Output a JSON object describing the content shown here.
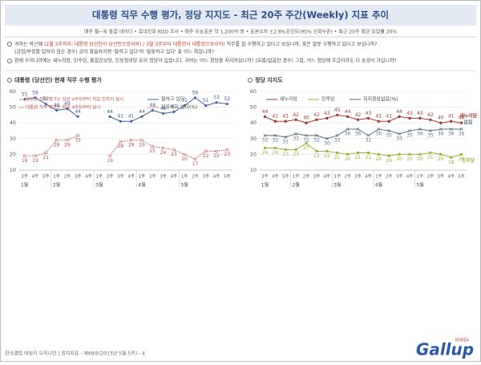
{
  "header": {
    "title": "대통령 직무 수행 평가, 정당 지지도 - 최근 20주 주간(Weekly) 지표 추이",
    "subtitle": "매주 월~목 통합 데이터 • 휴대전화 RDD 조사 • 매주 유효표본 약 1,200여 명 • 표본오차 ±2.8%포인트(95% 신뢰수준) • 최근 20주 평균 응답률 20%"
  },
  "questions": [
    {
      "a": "귀하는 박근혜 ",
      "b": "(2월 3주까지: 대통령 당선인이 당선인으로서의) / 3월 3주부터 대통령이 대통령으로서의)",
      "c": " 직무를 잘 수행하고 있다고 보십니까, 혹은 잘못 수행하고 있다고 보십니까?",
      "d": "(긍정/부정을 답하지 않은 경우) 굳이 말씀하자면 '잘하고 있다'와 '잘못하고 있다' 중 어느 쪽입니까?"
    },
    {
      "a": "현재 우리나라에는 새누리당, 민주당, 통합진보당, 진보정의당 등의 정당이 있습니다. 귀하는 어느 정당을 지지하십니까? (모름/없음인 경우) 그럼, 어느 정당에 조금이라도 더 호감이 가십니까?"
    }
  ],
  "chart_data": [
    {
      "type": "line",
      "title": "대통령 (당선인) 현재 직무 수행 평가",
      "categories": [
        "3주",
        "4주",
        "5주",
        "1주",
        "2주",
        "3주",
        "4주",
        "1주",
        "2주",
        "3주",
        "4주",
        "1주",
        "2주",
        "3주",
        "4주",
        "1주",
        "2주",
        "3주",
        "4주",
        "5주"
      ],
      "months": [
        "1월",
        null,
        null,
        "2월",
        null,
        null,
        null,
        "3월",
        null,
        null,
        null,
        "4월",
        null,
        null,
        null,
        "5월",
        null,
        null,
        null,
        null
      ],
      "series": [
        {
          "name": "잘하고 있다",
          "color": "#3d5f9c",
          "style": "solid",
          "marker": "diamond",
          "values": [
            55,
            56,
            52,
            48,
            49,
            44,
            null,
            null,
            44,
            41,
            41,
            44,
            48,
            46,
            47,
            51,
            56,
            51,
            53,
            52
          ]
        },
        {
          "name": "잘못하고 있다(%)",
          "color": "#c0504d",
          "style": "dotted",
          "marker": "circle",
          "values": [
            19,
            19,
            21,
            29,
            29,
            32,
            null,
            null,
            19,
            28,
            29,
            29,
            25,
            24,
            23,
            20,
            17,
            22,
            22,
            23
          ]
        }
      ],
      "annotations": [
        "당선인 직무 평가는 당선 4주차부터 취임 전까지 실시",
        "대통령 직무 평가는 취임 4주차부터 실시"
      ],
      "ylim": [
        10,
        60
      ],
      "yticks": [
        10,
        20,
        30,
        40,
        50,
        60
      ],
      "grid": true
    },
    {
      "type": "line",
      "title": "정당 지지도",
      "categories": [
        "3주",
        "4주",
        "5주",
        "1주",
        "2주",
        "3주",
        "4주",
        "1주",
        "2주",
        "3주",
        "4주",
        "1주",
        "2주",
        "3주",
        "4주",
        "1주",
        "2주",
        "3주",
        "4주",
        "5주"
      ],
      "months": [
        "1월",
        null,
        null,
        "2월",
        null,
        null,
        null,
        "3월",
        null,
        null,
        null,
        "4월",
        null,
        null,
        null,
        "5월",
        null,
        null,
        null,
        null
      ],
      "series": [
        {
          "name": "새누리당",
          "color": "#a33a34",
          "style": "solid",
          "marker": "circle",
          "values": [
            44,
            41,
            41,
            42,
            40,
            42,
            43,
            45,
            44,
            42,
            43,
            41,
            41,
            44,
            43,
            43,
            42,
            40,
            41,
            40
          ]
        },
        {
          "name": "민주당",
          "color": "#9bb535",
          "style": "solid",
          "marker": "circle",
          "values": [
            24,
            24,
            23,
            23,
            27,
            22,
            22,
            21,
            20,
            21,
            21,
            20,
            19,
            20,
            20,
            20,
            21,
            20,
            18,
            20
          ]
        },
        {
          "name": "지지정당없음(%)",
          "color": "#5b7383",
          "style": "solid",
          "marker": "x",
          "values": [
            32,
            32,
            31,
            33,
            32,
            32,
            30,
            32,
            36,
            36,
            32,
            36,
            35,
            33,
            35,
            36,
            35,
            36,
            36,
            36
          ]
        }
      ],
      "end_labels": [
        "새누리당",
        "민주당",
        "없음"
      ],
      "ylim": [
        10,
        60
      ],
      "yticks": [
        10,
        20,
        30,
        40,
        50,
        60
      ],
      "grid": true
    }
  ],
  "footer": {
    "text": "한국갤럽 데일리 오피니언 | 정치지표 - 제69호(2013년 5월 5주) - 4",
    "logo": "Gallup",
    "logo_sub": "KOREA"
  }
}
